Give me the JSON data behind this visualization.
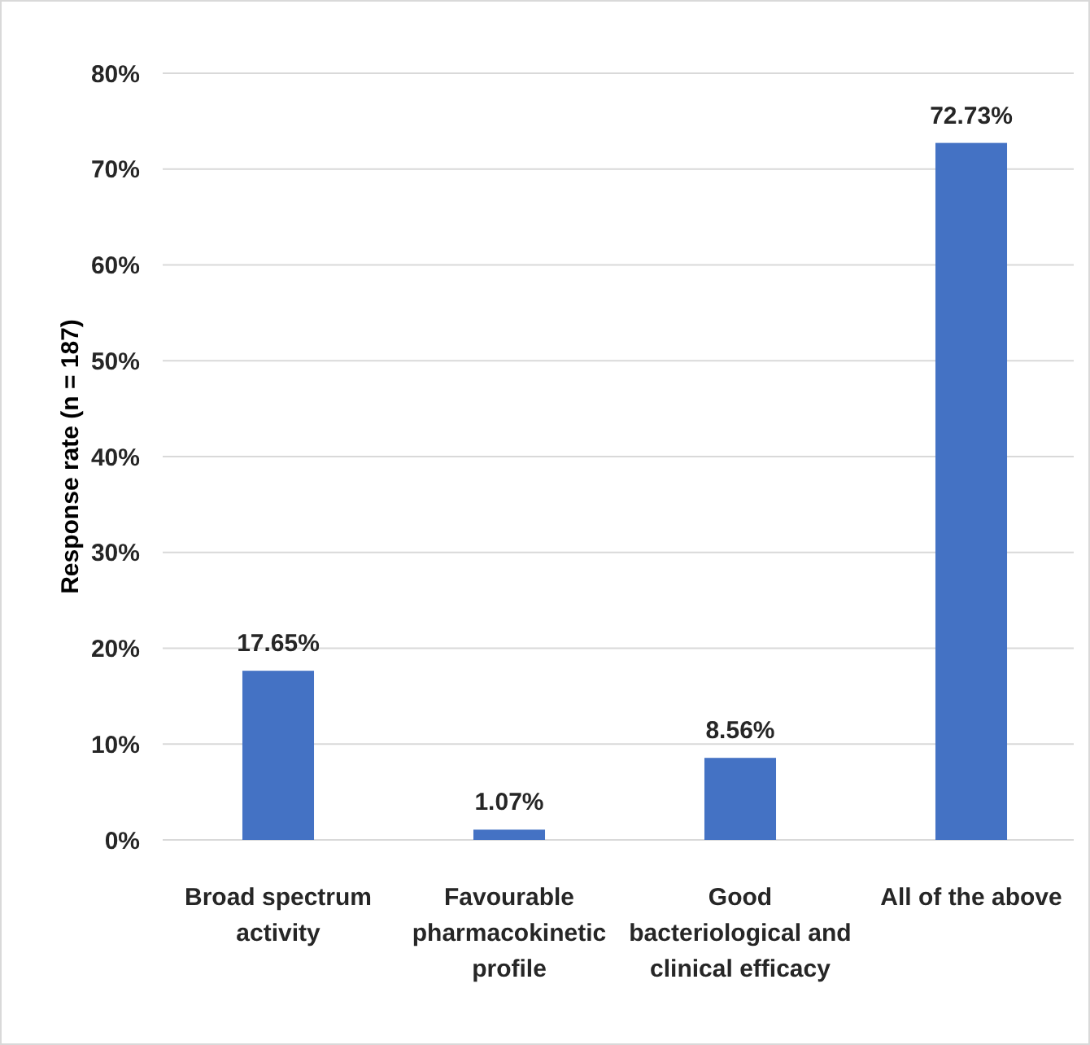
{
  "chart_data": {
    "type": "bar",
    "ylabel": "Response rate (n = 187)",
    "categories": [
      "Broad spectrum activity",
      "Favourable pharmacokinetic profile",
      "Good bacteriological and clinical efficacy",
      "All of the above"
    ],
    "values": [
      17.65,
      1.07,
      8.56,
      72.73
    ],
    "value_labels": [
      "17.65%",
      "1.07%",
      "8.56%",
      "72.73%"
    ],
    "color": "#4472c4",
    "ylim": [
      0,
      80
    ],
    "yticks": [
      {
        "value": 0,
        "label": "0%"
      },
      {
        "value": 10,
        "label": "10%"
      },
      {
        "value": 20,
        "label": "20%"
      },
      {
        "value": 30,
        "label": "30%"
      },
      {
        "value": 40,
        "label": "40%"
      },
      {
        "value": 50,
        "label": "50%"
      },
      {
        "value": 60,
        "label": "60%"
      },
      {
        "value": 70,
        "label": "70%"
      },
      {
        "value": 80,
        "label": "80%"
      }
    ],
    "grid": true
  }
}
